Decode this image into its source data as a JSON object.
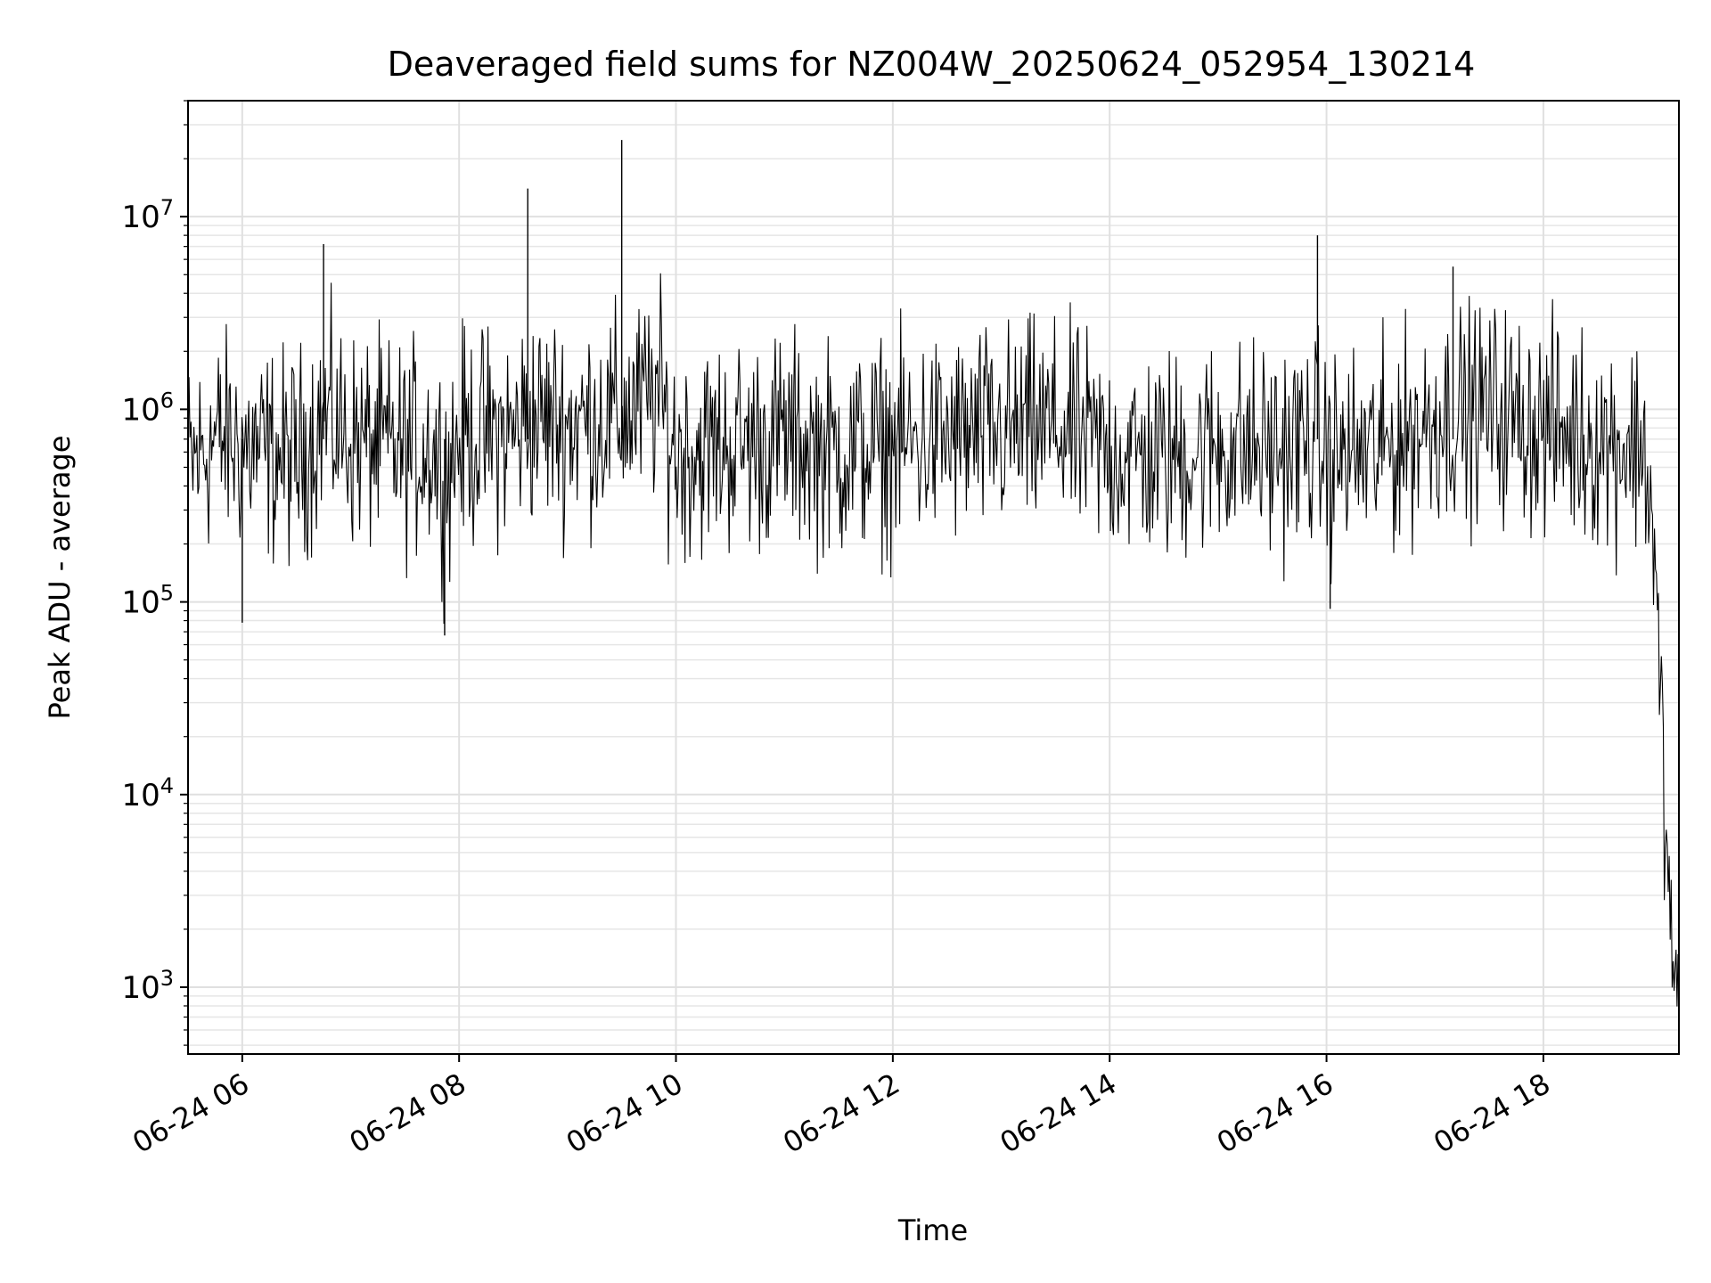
{
  "chart_data": {
    "type": "line",
    "title": "Deaveraged field sums for NZ004W_20250624_052954_130214",
    "xlabel": "Time",
    "ylabel": "Peak ADU - average",
    "x_axis": {
      "kind": "time",
      "range": [
        "2025-06-24T05:30",
        "2025-06-24T19:15"
      ],
      "tick_values": [
        "2025-06-24T06:00",
        "2025-06-24T08:00",
        "2025-06-24T10:00",
        "2025-06-24T12:00",
        "2025-06-24T14:00",
        "2025-06-24T16:00",
        "2025-06-24T18:00"
      ],
      "tick_labels": [
        "06-24 06",
        "06-24 08",
        "06-24 10",
        "06-24 12",
        "06-24 14",
        "06-24 16",
        "06-24 18"
      ],
      "tick_rotation_deg": 30
    },
    "y_axis": {
      "scale": "log",
      "range": [
        450,
        40000000
      ],
      "tick_values": [
        1000,
        10000,
        100000,
        1000000,
        10000000
      ],
      "tick_labels": [
        {
          "base": "10",
          "exp": "3"
        },
        {
          "base": "10",
          "exp": "4"
        },
        {
          "base": "10",
          "exp": "5"
        },
        {
          "base": "10",
          "exp": "6"
        },
        {
          "base": "10",
          "exp": "7"
        }
      ]
    },
    "grid": true,
    "legend": "none",
    "series": [
      {
        "color": "#000000",
        "x": [
          "2025-06-24T05:30",
          "2025-06-24T05:45",
          "2025-06-24T06:00",
          "2025-06-24T06:10",
          "2025-06-24T06:30",
          "2025-06-24T06:45",
          "2025-06-24T07:00",
          "2025-06-24T07:30",
          "2025-06-24T07:45",
          "2025-06-24T07:52",
          "2025-06-24T08:00",
          "2025-06-24T08:30",
          "2025-06-24T08:38",
          "2025-06-24T09:00",
          "2025-06-24T09:30",
          "2025-06-24T09:50",
          "2025-06-24T10:00",
          "2025-06-24T10:30",
          "2025-06-24T11:00",
          "2025-06-24T11:30",
          "2025-06-24T12:00",
          "2025-06-24T12:30",
          "2025-06-24T13:00",
          "2025-06-24T13:30",
          "2025-06-24T14:00",
          "2025-06-24T14:30",
          "2025-06-24T15:00",
          "2025-06-24T15:30",
          "2025-06-24T15:55",
          "2025-06-24T16:00",
          "2025-06-24T16:30",
          "2025-06-24T17:00",
          "2025-06-24T17:30",
          "2025-06-24T18:00",
          "2025-06-24T18:30",
          "2025-06-24T18:50",
          "2025-06-24T18:55",
          "2025-06-24T19:00",
          "2025-06-24T19:05",
          "2025-06-24T19:10",
          "2025-06-24T19:15"
        ],
        "y": [
          500000,
          700000,
          650000,
          600000,
          550000,
          900000,
          700000,
          600000,
          650000,
          450000,
          700000,
          750000,
          900000,
          850000,
          900000,
          1200000,
          600000,
          650000,
          700000,
          600000,
          650000,
          700000,
          750000,
          800000,
          600000,
          550000,
          650000,
          600000,
          700000,
          550000,
          600000,
          900000,
          1000000,
          800000,
          700000,
          650000,
          700000,
          300000,
          30000,
          2000,
          900
        ]
      }
    ],
    "spikes": [
      {
        "x": "2025-06-24T06:45",
        "y": 7200000
      },
      {
        "x": "2025-06-24T08:38",
        "y": 14000000
      },
      {
        "x": "2025-06-24T09:30",
        "y": 25000000
      },
      {
        "x": "2025-06-24T15:55",
        "y": 8000000
      },
      {
        "x": "2025-06-24T17:10",
        "y": 5500000
      },
      {
        "x": "2025-06-24T07:52",
        "y": 67000
      },
      {
        "x": "2025-06-24T06:00",
        "y": 78000
      },
      {
        "x": "2025-06-24T16:02",
        "y": 92000
      }
    ]
  }
}
